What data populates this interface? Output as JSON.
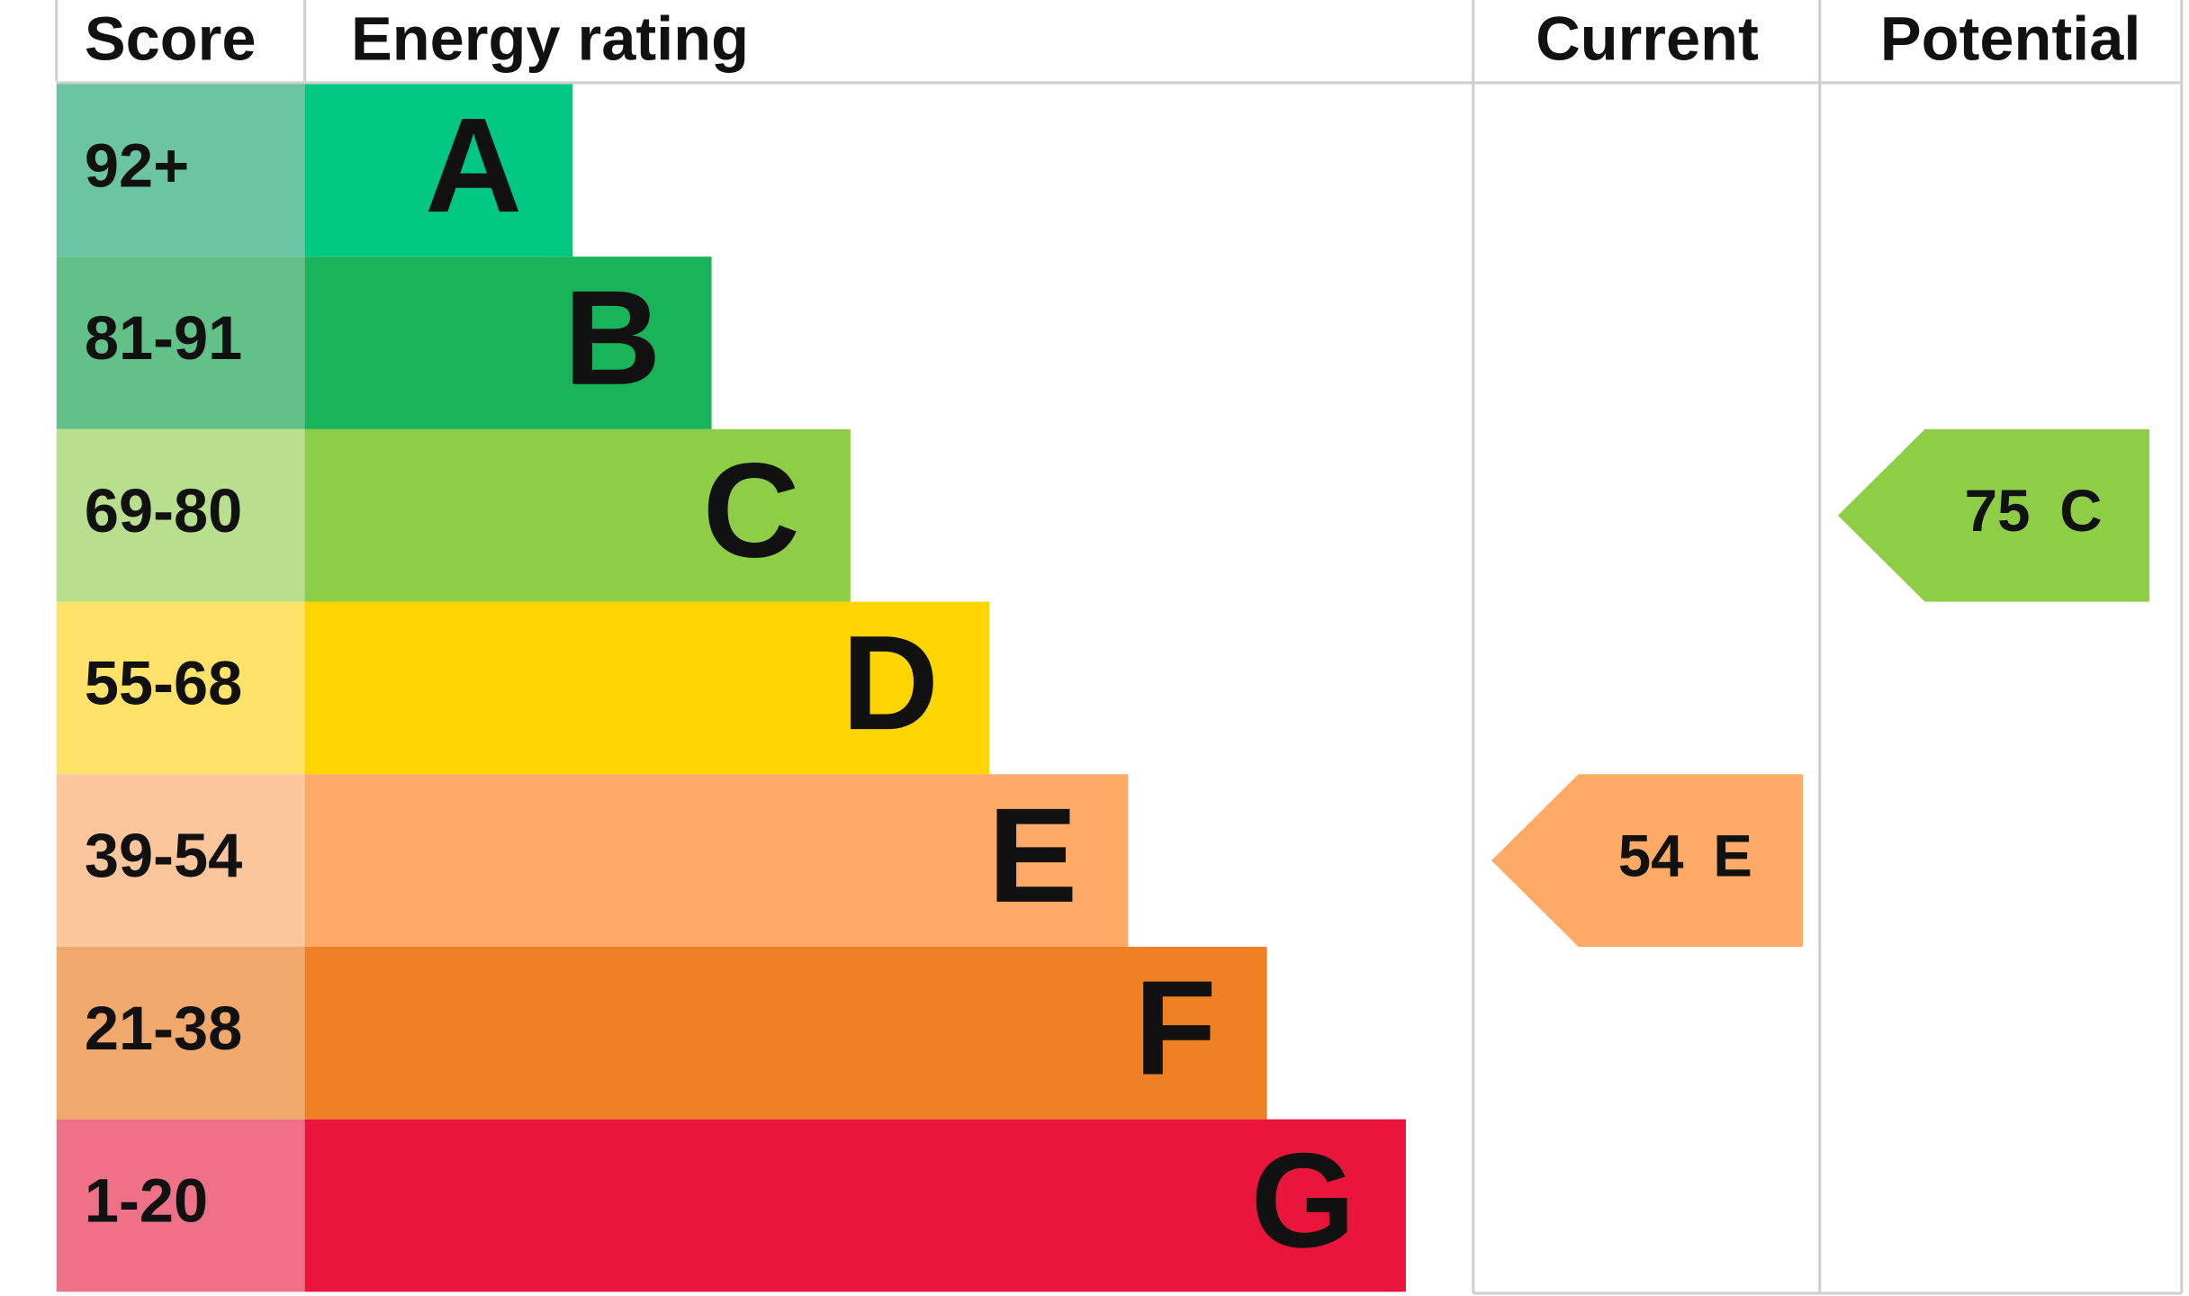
{
  "headers": {
    "score": "Score",
    "rating": "Energy rating",
    "current": "Current",
    "potential": "Potential"
  },
  "bands": [
    {
      "score": "92+",
      "rating": "A",
      "color": "#00c781",
      "score_color": "#6cc5a2"
    },
    {
      "score": "81-91",
      "rating": "B",
      "color": "#19b459",
      "score_color": "#62c188"
    },
    {
      "score": "69-80",
      "rating": "C",
      "color": "#8dce46",
      "score_color": "#b8de8e"
    },
    {
      "score": "55-68",
      "rating": "D",
      "color": "#ffd500",
      "score_color": "#ffe26a"
    },
    {
      "score": "39-54",
      "rating": "E",
      "color": "#fcaa65",
      "score_color": "#fbc69c"
    },
    {
      "score": "21-38",
      "rating": "F",
      "color": "#ef8023",
      "score_color": "#f0a86c"
    },
    {
      "score": "1-20",
      "rating": "G",
      "color": "#e9153b",
      "score_color": "#ee7188"
    }
  ],
  "current": {
    "score": 54,
    "rating": "E"
  },
  "potential": {
    "score": 75,
    "rating": "C"
  }
}
